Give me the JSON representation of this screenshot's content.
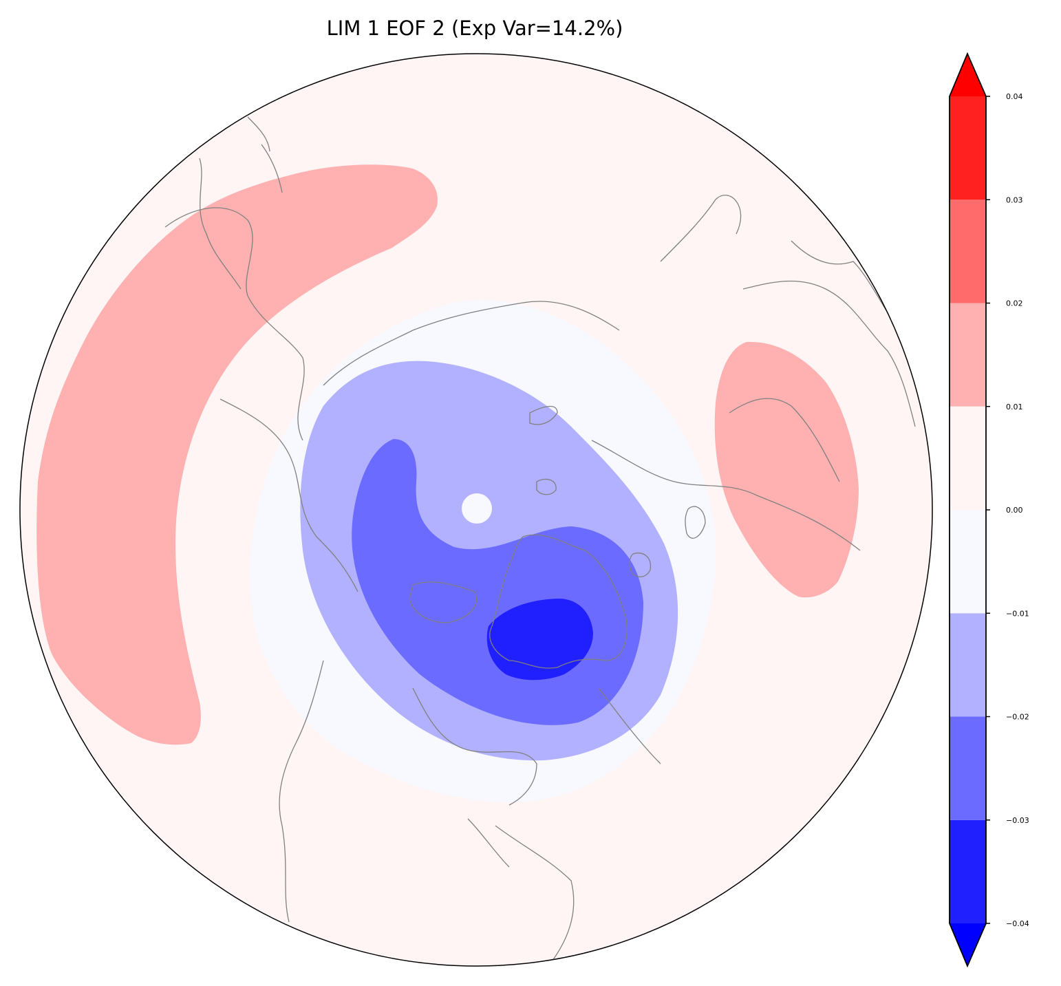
{
  "chart_data": {
    "type": "heatmap",
    "title": "LIM 1 EOF 2 (Exp Var=14.2%)",
    "projection": "north polar stereographic",
    "colorbar": {
      "levels": [
        -0.04,
        -0.03,
        -0.02,
        -0.01,
        0.0,
        0.01,
        0.02,
        0.03,
        0.04
      ],
      "tick_labels": [
        "−0.04",
        "−0.03",
        "−0.02",
        "−0.01",
        "0.00",
        "0.01",
        "0.02",
        "0.03",
        "0.04"
      ],
      "colors": [
        "#2020ff",
        "#6b6bff",
        "#b1b1ff",
        "#f8f8ff",
        "#fff5f5",
        "#ffb1b1",
        "#ff6b6b",
        "#ff2020"
      ],
      "under_color": "#0000ff",
      "over_color": "#ff0000",
      "extend": "both"
    },
    "regions": [
      {
        "name": "north-pacific-positive-band",
        "value_range": [
          0.01,
          0.02
        ]
      },
      {
        "name": "ural-positive-lobe",
        "value_range": [
          0.01,
          0.02
        ]
      },
      {
        "name": "polar-negative-outer",
        "value_range": [
          -0.01,
          0.0
        ]
      },
      {
        "name": "polar-negative-middle",
        "value_range": [
          -0.02,
          -0.01
        ]
      },
      {
        "name": "polar-negative-inner",
        "value_range": [
          -0.03,
          -0.02
        ]
      },
      {
        "name": "greenland-negative-core",
        "value_range": [
          -0.04,
          -0.03
        ]
      }
    ],
    "coastline_color": "#808080"
  }
}
